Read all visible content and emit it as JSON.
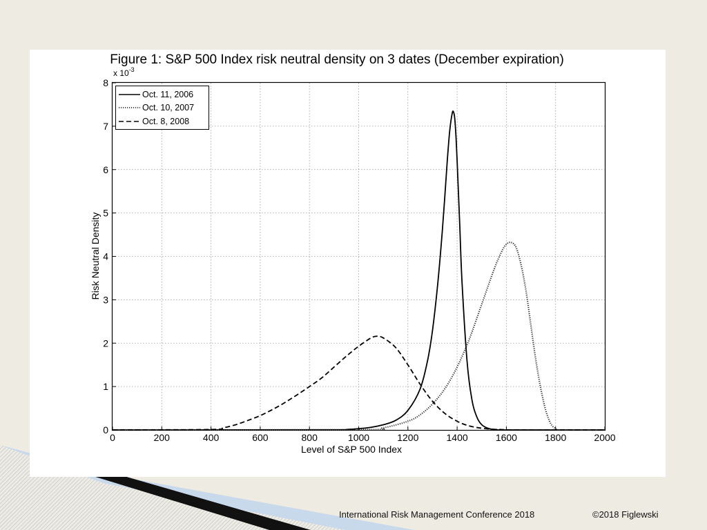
{
  "footer": {
    "conference": "International Risk Management Conference 2018",
    "copyright": "©2018 Figlewski"
  },
  "chart_data": {
    "type": "line",
    "title": "Figure 1:  S&P 500 Index risk neutral density on 3 dates (December expiration)",
    "xlabel": "Level of S&P 500 Index",
    "ylabel": "Risk Neutral Density",
    "y_multiplier_label": "x 10",
    "y_multiplier_exponent": "-3",
    "xlim": [
      0,
      2000
    ],
    "ylim": [
      0,
      8
    ],
    "xticks": [
      0,
      200,
      400,
      600,
      800,
      1000,
      1200,
      1400,
      1600,
      1800,
      2000
    ],
    "yticks": [
      0,
      1,
      2,
      3,
      4,
      5,
      6,
      7,
      8
    ],
    "grid": true,
    "legend_position": "top-left",
    "series": [
      {
        "name": "Oct. 11, 2006",
        "style": "solid",
        "color": "#000000",
        "x": [
          0,
          900,
          950,
          1000,
          1050,
          1100,
          1150,
          1200,
          1250,
          1280,
          1300,
          1320,
          1340,
          1360,
          1370,
          1380,
          1385,
          1390,
          1395,
          1400,
          1410,
          1420,
          1440,
          1460,
          1480,
          1500,
          1530,
          1560,
          1600,
          2000
        ],
        "y": [
          0,
          0.003,
          0.01,
          0.03,
          0.06,
          0.12,
          0.22,
          0.45,
          0.95,
          1.6,
          2.3,
          3.3,
          4.6,
          6.2,
          6.9,
          7.3,
          7.33,
          7.2,
          6.8,
          6.2,
          4.8,
          3.4,
          1.6,
          0.7,
          0.3,
          0.12,
          0.03,
          0.01,
          0,
          0
        ]
      },
      {
        "name": "Oct. 10, 2007",
        "style": "dotted",
        "color": "#333333",
        "x": [
          0,
          1000,
          1100,
          1200,
          1250,
          1300,
          1350,
          1400,
          1450,
          1500,
          1550,
          1580,
          1600,
          1620,
          1640,
          1660,
          1680,
          1700,
          1720,
          1740,
          1760,
          1780,
          1800,
          1820,
          2000
        ],
        "y": [
          0,
          0.005,
          0.05,
          0.2,
          0.35,
          0.6,
          0.95,
          1.45,
          2.1,
          2.9,
          3.7,
          4.1,
          4.28,
          4.32,
          4.2,
          3.8,
          3.2,
          2.4,
          1.6,
          0.95,
          0.45,
          0.15,
          0.03,
          0,
          0
        ]
      },
      {
        "name": "Oct. 8, 2008",
        "style": "dashed",
        "color": "#000000",
        "x": [
          0,
          400,
          450,
          500,
          550,
          600,
          650,
          700,
          750,
          800,
          850,
          900,
          950,
          1000,
          1050,
          1075,
          1100,
          1150,
          1200,
          1250,
          1300,
          1350,
          1400,
          1450,
          1500,
          1550,
          1600,
          1650,
          2000
        ],
        "y": [
          0,
          0.01,
          0.05,
          0.12,
          0.22,
          0.33,
          0.47,
          0.63,
          0.81,
          1.0,
          1.2,
          1.45,
          1.7,
          1.93,
          2.12,
          2.16,
          2.12,
          1.9,
          1.5,
          1.05,
          0.66,
          0.38,
          0.2,
          0.09,
          0.04,
          0.015,
          0.005,
          0,
          0
        ]
      }
    ]
  }
}
